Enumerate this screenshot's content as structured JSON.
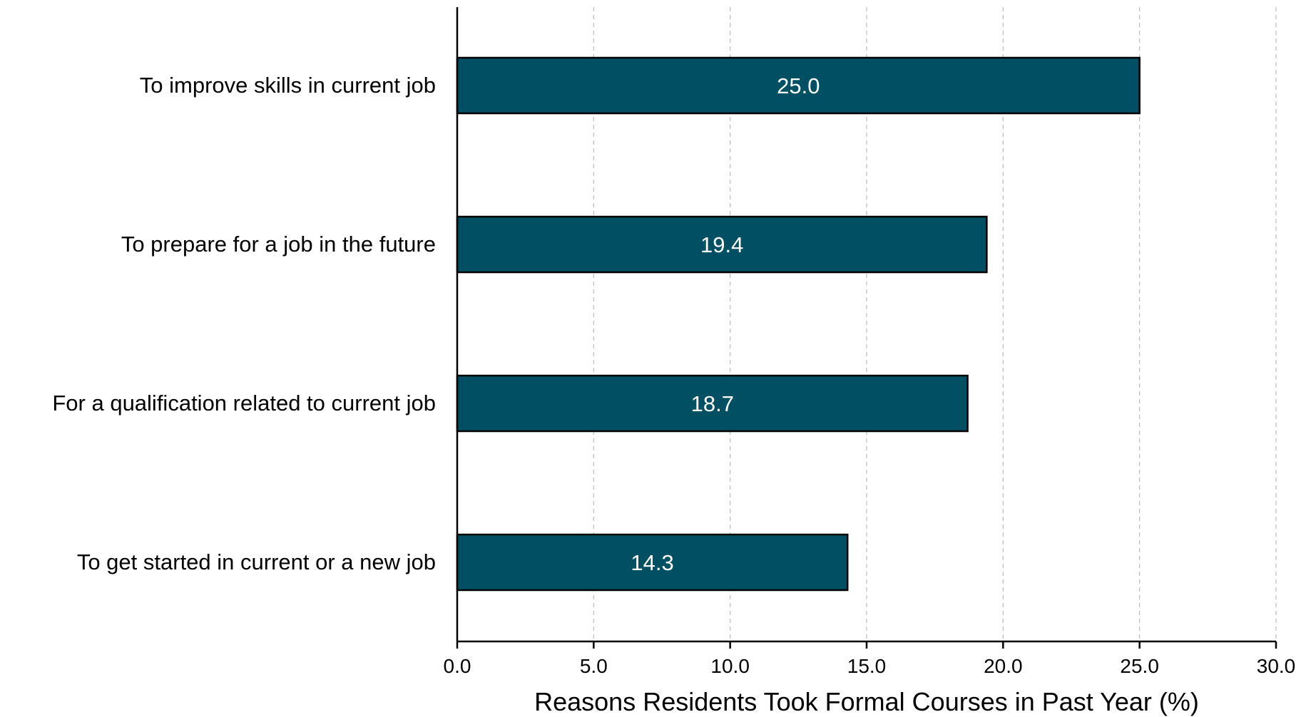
{
  "chart_data": {
    "type": "bar",
    "orientation": "horizontal",
    "categories": [
      "To improve skills in current job",
      "To prepare for a job in the future",
      "For a qualification related to current job",
      "To get started in current or a new job"
    ],
    "values": [
      25.0,
      19.4,
      18.7,
      14.3
    ],
    "data_labels": [
      "25.0",
      "19.4",
      "18.7",
      "14.3"
    ],
    "xlabel": "Reasons Residents Took Formal Courses in Past Year (%)",
    "xlim": [
      0,
      30
    ],
    "xticks": [
      0,
      5,
      10,
      15,
      20,
      25,
      30
    ],
    "xtick_labels": [
      "0.0",
      "5.0",
      "10.0",
      "15.0",
      "20.0",
      "25.0",
      "30.0"
    ],
    "grid": "x-dashed",
    "legend": "none",
    "colors": {
      "bar": "#004f63",
      "bar_edge": "#000000",
      "grid": "#bbbbbb",
      "axis": "#000000"
    }
  }
}
